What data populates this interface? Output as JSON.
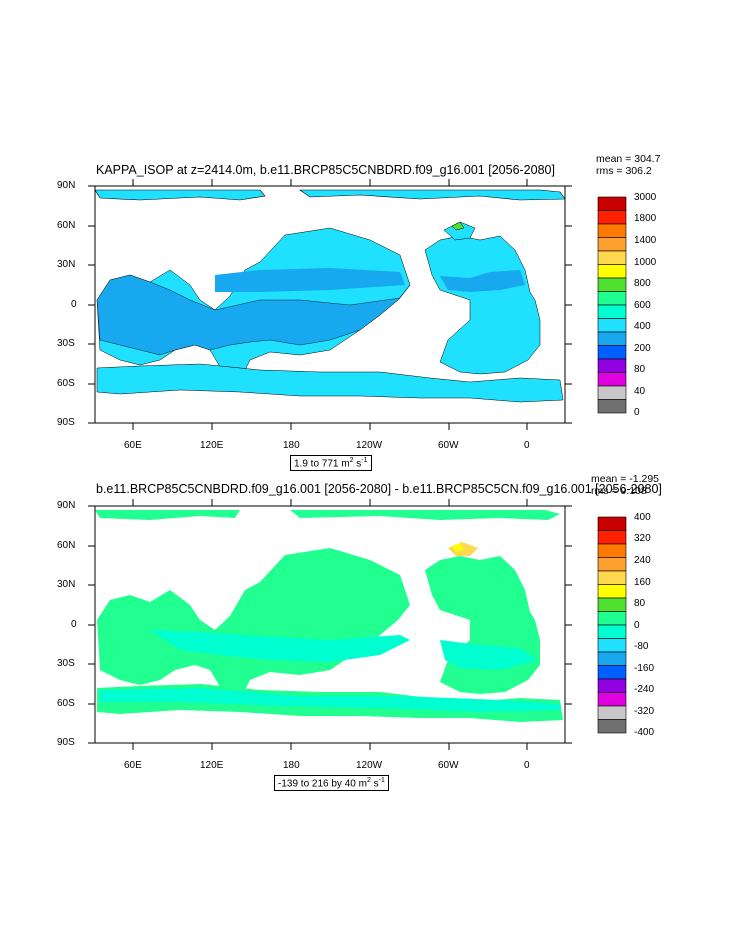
{
  "panels": [
    {
      "title": "KAPPA_ISOP at z=2414.0m, b.e11.BRCP85C5CNBDRD.f09_g16.001 [2056-2080]",
      "mean": "mean = 304.7",
      "rms": "rms = 306.2",
      "range_prefix": "1.9 to 771 m",
      "range_exp": "2",
      "range_mid": " s",
      "range_exp2": "-1",
      "lat_labels": [
        "90N",
        "60N",
        "30N",
        "0",
        "30S",
        "60S",
        "90S"
      ],
      "lon_labels": [
        "60E",
        "120E",
        "180",
        "120W",
        "60W",
        "0"
      ],
      "colorbar_labels": [
        "3000",
        "1800",
        "1400",
        "1000",
        "800",
        "600",
        "400",
        "200",
        "80",
        "40",
        "0"
      ],
      "colorbar_colors": [
        "#c80000",
        "#ff2000",
        "#ff7800",
        "#ffa030",
        "#ffd850",
        "#ffff00",
        "#50e030",
        "#20ff90",
        "#00ffd0",
        "#20e0ff",
        "#18a8f0",
        "#0060ff",
        "#9000e0",
        "#e000e0",
        "#c8c8c8",
        "#707070"
      ]
    },
    {
      "title": "b.e11.BRCP85C5CNBDRD.f09_g16.001 [2056-2080] - b.e11.BRCP85C5CN.f09_g16.001 [2056-2080]",
      "mean": "mean = -1.295",
      "rms": "rms = 9.108",
      "range_prefix": "-139 to 216 by 40 m",
      "range_exp": "2",
      "range_mid": " s",
      "range_exp2": "-1",
      "lat_labels": [
        "90N",
        "60N",
        "30N",
        "0",
        "30S",
        "60S",
        "90S"
      ],
      "lon_labels": [
        "60E",
        "120E",
        "180",
        "120W",
        "60W",
        "0"
      ],
      "colorbar_labels": [
        "400",
        "320",
        "240",
        "160",
        "80",
        "0",
        "-80",
        "-160",
        "-240",
        "-320",
        "-400"
      ],
      "colorbar_colors": [
        "#c80000",
        "#ff2000",
        "#ff7800",
        "#ffa030",
        "#ffd850",
        "#ffff00",
        "#50e030",
        "#20ff90",
        "#00ffd0",
        "#20e0ff",
        "#18a8f0",
        "#0060ff",
        "#9000e0",
        "#e000e0",
        "#c8c8c8",
        "#707070"
      ]
    }
  ]
}
